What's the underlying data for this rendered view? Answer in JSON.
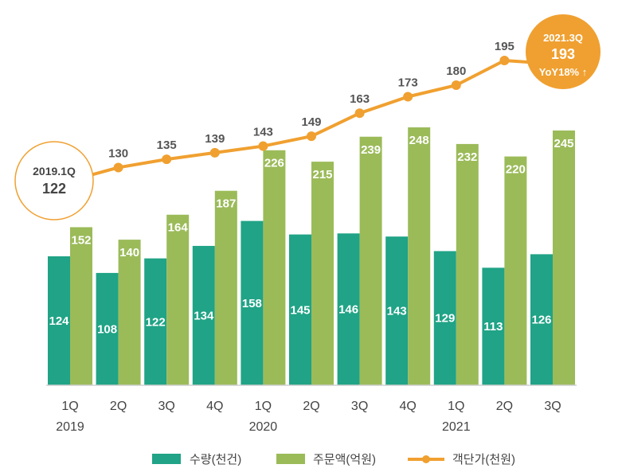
{
  "chart_data": {
    "type": "bar",
    "categories": [
      "1Q",
      "2Q",
      "3Q",
      "4Q",
      "1Q",
      "2Q",
      "3Q",
      "4Q",
      "1Q",
      "2Q",
      "3Q"
    ],
    "years": [
      {
        "label": "2019",
        "index": 0
      },
      {
        "label": "2020",
        "index": 4
      },
      {
        "label": "2021",
        "index": 8
      }
    ],
    "series": [
      {
        "name": "수량(천건)",
        "kind": "bar",
        "color": "#20a386",
        "values": [
          124,
          108,
          122,
          134,
          158,
          145,
          146,
          143,
          129,
          113,
          126
        ]
      },
      {
        "name": "주문액(억원)",
        "kind": "bar",
        "color": "#9bbb59",
        "values": [
          152,
          140,
          164,
          187,
          226,
          215,
          239,
          248,
          232,
          220,
          245
        ]
      },
      {
        "name": "객단가(천원)",
        "kind": "line",
        "color": "#f0a030",
        "values": [
          122,
          130,
          135,
          139,
          143,
          149,
          163,
          173,
          180,
          195,
          193
        ]
      }
    ],
    "bar_ylim": [
      0,
      248
    ],
    "line_ylim": [
      122,
      195
    ],
    "callouts": {
      "start": {
        "period": "2019.1Q",
        "value": "122"
      },
      "end": {
        "period": "2021.3Q",
        "value": "193",
        "note": "YoY18% ↑"
      }
    }
  }
}
